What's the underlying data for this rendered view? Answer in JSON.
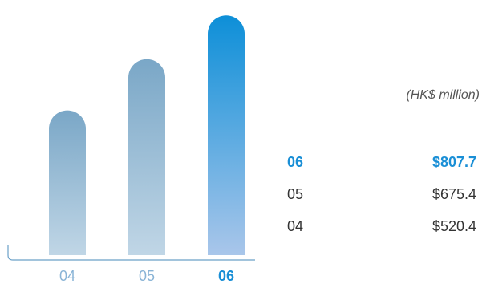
{
  "chart_data": {
    "type": "bar",
    "categories": [
      "04",
      "05",
      "06"
    ],
    "values": [
      520.4,
      675.4,
      807.7
    ],
    "highlight": "06",
    "unit": "(HK$ million)",
    "ylim": [
      0,
      830
    ],
    "colors": {
      "bar_top": "#7aa7c7",
      "bar_bottom": "#c0d6e6",
      "highlight_top": "#0d8fd8",
      "highlight_bottom": "#a9c6ea",
      "axis": "#6aa0c8",
      "tick_label": "#8ab4d6",
      "highlight_label": "#1a8fd6"
    }
  },
  "table": {
    "rows": [
      {
        "year": "06",
        "value": "$807.7",
        "highlight": true
      },
      {
        "year": "05",
        "value": "$675.4",
        "highlight": false
      },
      {
        "year": "04",
        "value": "$520.4",
        "highlight": false
      }
    ]
  }
}
